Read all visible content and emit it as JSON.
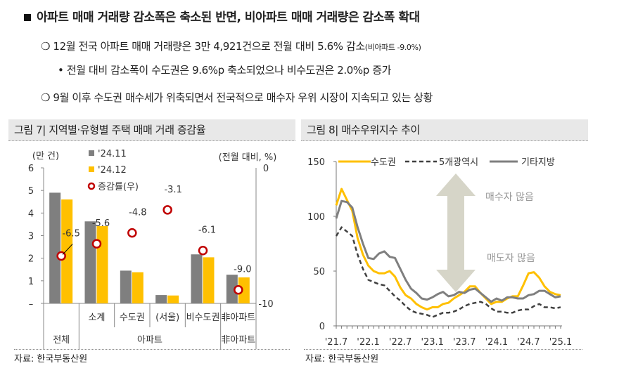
{
  "header": {
    "title": "아파트 매매 거래량 감소폭은 축소된 반면, 비아파트 매매 거래량은 감소폭 확대"
  },
  "bullets": [
    {
      "text": "12월 전국 아파트 매매 거래량은 3만 4,921건으로 전월 대비 5.6% 감소",
      "note": "(비아파트 -9.0%)"
    },
    {
      "text": "• 전월 대비 감소폭이 수도권은 9.6%p 축소되었으나 비수도권은 2.0%p 증가"
    },
    {
      "text": "9월 이후 수도권 매수세가 위축되면서 전국적으로 매수자 우위 시장이 지속되고 있는 상황"
    }
  ],
  "colors": {
    "gray": "#7f7f7f",
    "yellow": "#ffc000",
    "red": "#c00000",
    "dark": "#404040",
    "arrow": "#d6d5c8"
  },
  "chart_data": [
    {
      "type": "bar",
      "title": "그림 7| 지역별·유형별 주택 매매 거래 증감율",
      "ylabel": "(만 건)",
      "y2label": "(전월 대비, %)",
      "ylim": [
        0,
        6
      ],
      "y2lim": [
        -10,
        0
      ],
      "yticks": [
        "–",
        "1",
        "2",
        "3",
        "4",
        "5",
        "6"
      ],
      "y2ticks": [
        "-10",
        "0"
      ],
      "categories": [
        "전체",
        "소계",
        "수도권",
        "(서울)",
        "비수도권",
        "非아파트"
      ],
      "group_labels": [
        "전체",
        "아파트",
        "非아파트"
      ],
      "series": [
        {
          "name": "'24.11",
          "values": [
            4.9,
            3.63,
            1.45,
            0.37,
            2.17,
            1.27
          ]
        },
        {
          "name": "'24.12",
          "values": [
            4.6,
            3.42,
            1.38,
            0.35,
            2.04,
            1.15
          ]
        },
        {
          "name": "증감률(우)",
          "values": [
            -6.5,
            -5.6,
            -4.8,
            -3.1,
            -6.1,
            -9.0
          ],
          "labels": [
            "-6.5",
            "-5.6",
            "-4.8",
            "-3.1",
            "-6.1",
            "-9.0"
          ]
        }
      ],
      "source": "자료: 한국부동산원"
    },
    {
      "type": "line",
      "title": "그림 8| 매수우위지수 추이",
      "ylim": [
        0,
        150
      ],
      "yticks": [
        "0",
        "50",
        "100",
        "150"
      ],
      "xticks": [
        "'21.7",
        "'22.1",
        "'22.7",
        "'23.1",
        "'23.7",
        "'24.1",
        "'24.7",
        "'25.1"
      ],
      "x_start": "2021-07",
      "x_end": "2025-01",
      "annotations": [
        "매수자 많음",
        "매도자 많음"
      ],
      "series": [
        {
          "name": "수도권",
          "values": [
            110,
            125,
            115,
            105,
            80,
            65,
            55,
            50,
            48,
            48,
            50,
            45,
            35,
            28,
            25,
            20,
            17,
            15,
            17,
            17,
            20,
            21,
            25,
            28,
            31,
            36,
            36,
            30,
            25,
            20,
            22,
            22,
            25,
            27,
            27,
            37,
            48,
            49,
            44,
            36,
            31,
            29,
            28
          ]
        },
        {
          "name": "5개광역시",
          "values": [
            82,
            90,
            86,
            82,
            65,
            52,
            42,
            40,
            38,
            37,
            32,
            27,
            23,
            18,
            14,
            12,
            11,
            10,
            8,
            10,
            12,
            12,
            13,
            15,
            18,
            20,
            21,
            22,
            20,
            16,
            13,
            13,
            12,
            12,
            14,
            15,
            15,
            18,
            20,
            17,
            17,
            16,
            17
          ]
        },
        {
          "name": "기타지방",
          "values": [
            98,
            114,
            113,
            108,
            90,
            75,
            62,
            61,
            66,
            68,
            63,
            62,
            52,
            42,
            34,
            30,
            25,
            24,
            26,
            29,
            31,
            27,
            28,
            31,
            30,
            33,
            34,
            30,
            26,
            22,
            25,
            23,
            26,
            26,
            25,
            25,
            28,
            29,
            32,
            32,
            29,
            26,
            27
          ]
        }
      ],
      "source": "자료: 한국부동산원"
    }
  ]
}
